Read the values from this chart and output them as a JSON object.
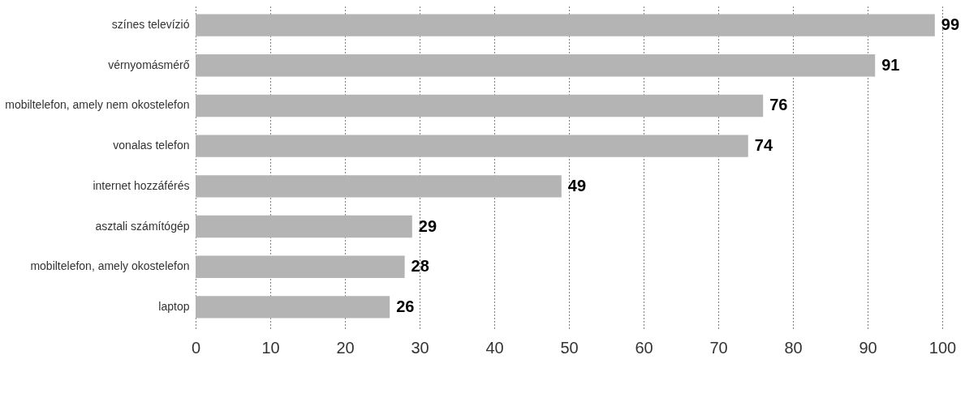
{
  "chart_data": {
    "type": "bar",
    "orientation": "horizontal",
    "categories": [
      "színes televízió",
      "vérnyomásmérő",
      "mobiltelefon, amely nem okostelefon",
      "vonalas telefon",
      "internet hozzáférés",
      "asztali számítógép",
      "mobiltelefon, amely okostelefon",
      "laptop"
    ],
    "values": [
      99,
      91,
      76,
      74,
      49,
      29,
      28,
      26
    ],
    "color": "#b4b4b4",
    "xlim": [
      0,
      100
    ],
    "xticks": [
      0,
      10,
      20,
      30,
      40,
      50,
      60,
      70,
      80,
      90,
      100
    ],
    "grid": "x",
    "data_labels": true
  }
}
